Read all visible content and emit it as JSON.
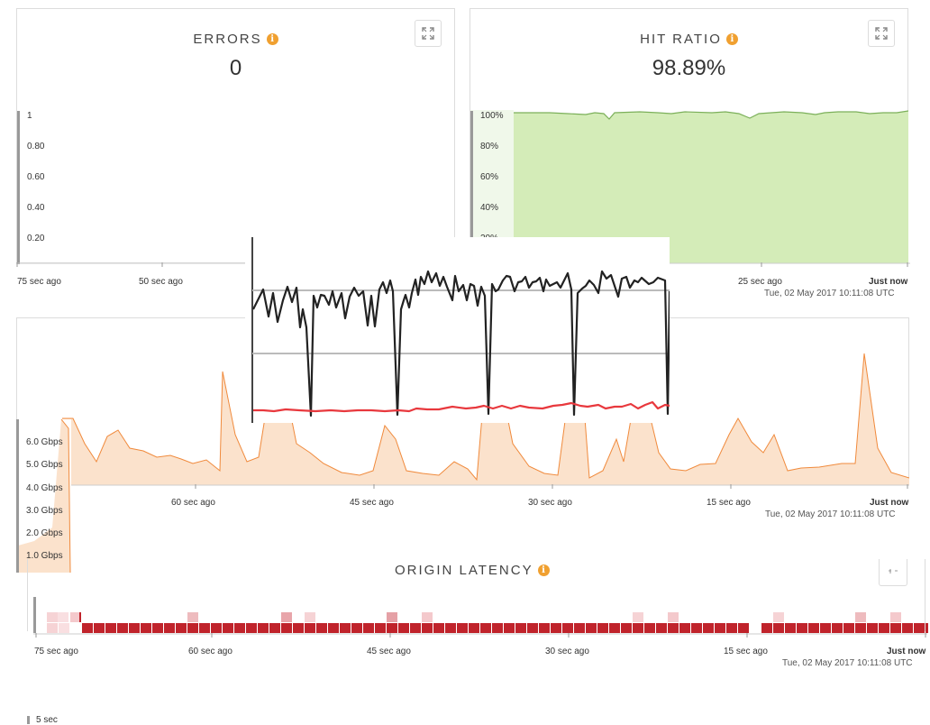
{
  "errors": {
    "title": "ERRORS",
    "value": "0",
    "y_ticks": [
      "1",
      "0.80",
      "0.60",
      "0.40",
      "0.20"
    ],
    "x_ticks": [
      "75 sec ago",
      "50 sec ago"
    ]
  },
  "hit_ratio": {
    "title": "HIT RATIO",
    "value": "98.89%",
    "y_ticks": [
      "100%",
      "80%",
      "60%",
      "40%",
      "20%"
    ],
    "x_ticks": [
      "25 sec ago",
      "Just now"
    ],
    "timestamp": "Tue, 02 May 2017 10:11:08 UTC",
    "fill_color": "#d4ecb8",
    "line_color": "#7cb05a"
  },
  "bandwidth": {
    "y_ticks": [
      "6.0 Gbps",
      "5.0 Gbps",
      "4.0 Gbps",
      "3.0 Gbps",
      "2.0 Gbps",
      "1.0 Gbps"
    ],
    "x_ticks": [
      "60 sec ago",
      "45 sec ago",
      "30 sec ago",
      "15 sec ago",
      "Just now"
    ],
    "timestamp": "Tue, 02 May 2017 10:11:08 UTC",
    "fill_color": "#fbe2cc",
    "line_color": "#f08a3c"
  },
  "origin_latency": {
    "title": "ORIGIN LATENCY",
    "x_ticks": [
      "75 sec ago",
      "60 sec ago",
      "45 sec ago",
      "30 sec ago",
      "15 sec ago",
      "Just now"
    ],
    "timestamp": "Tue, 02 May 2017 10:11:08 UTC",
    "bucket_label": "5 sec",
    "heat_color": "#c0232b"
  },
  "overlay_chart": {
    "black_color": "#222222",
    "red_color": "#e8383d",
    "grid_color": "#bbbbbb"
  },
  "icons": {
    "info": "info-icon",
    "expand": "expand-icon"
  }
}
